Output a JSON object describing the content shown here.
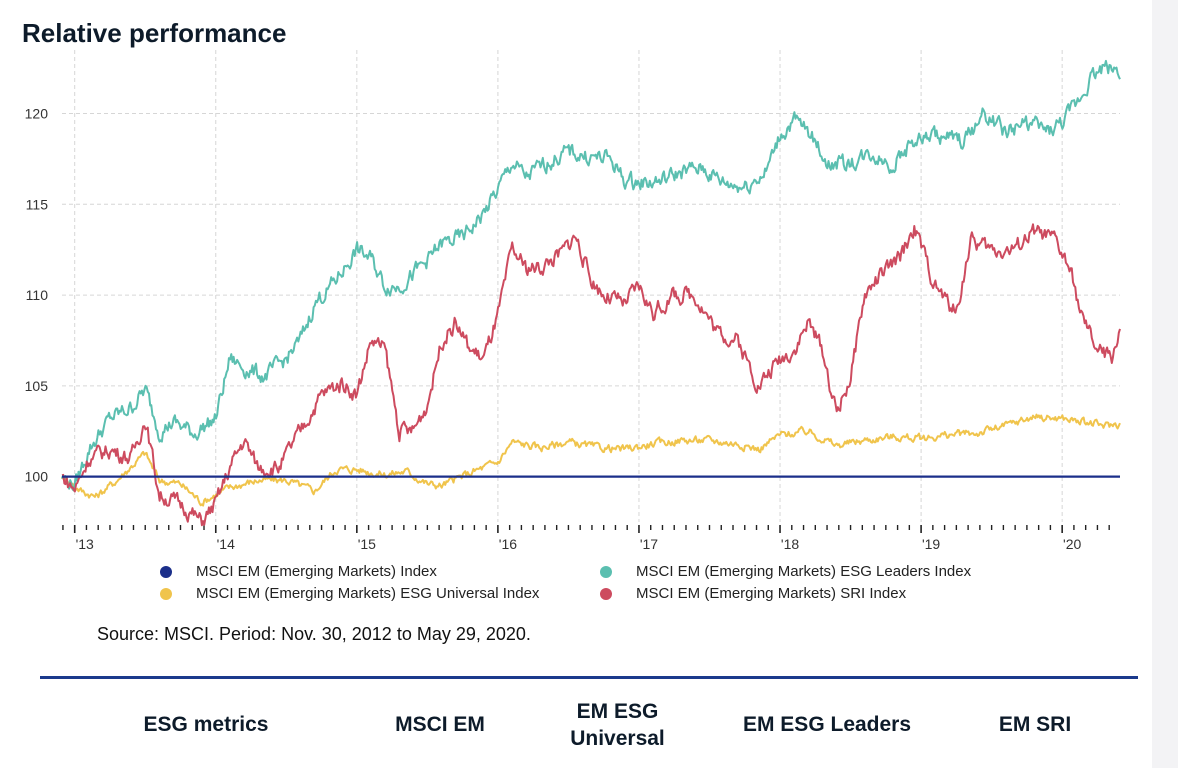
{
  "title": "Relative performance",
  "source": "Source: MSCI. Period: Nov. 30, 2012 to May 29, 2020.",
  "table": {
    "headers": [
      "ESG metrics",
      "MSCI EM",
      "EM ESG Universal",
      "EM ESG Leaders",
      "EM SRI"
    ]
  },
  "colors": {
    "em": "#1b2f8a",
    "universal": "#f0c44c",
    "leaders": "#5bbfb0",
    "sri": "#cd4b5f",
    "grid": "#d6d6d6",
    "divider": "#1b3a8c"
  },
  "chart_data": {
    "type": "line",
    "title": "Relative performance",
    "xlabel": "",
    "ylabel": "",
    "ylim": [
      97.5,
      123.5
    ],
    "xlim": [
      2012.91,
      2020.41
    ],
    "yticks": [
      100,
      105,
      110,
      115,
      120
    ],
    "xticks": [
      2013,
      2014,
      2015,
      2016,
      2017,
      2018,
      2019,
      2020
    ],
    "xtick_labels": [
      "'13",
      "'14",
      "'15",
      "'16",
      "'17",
      "'18",
      "'19",
      "'20"
    ],
    "grid": true,
    "legend_position": "bottom",
    "series": [
      {
        "key": "em",
        "name": "MSCI EM (Emerging Markets) Index",
        "x": [
          2012.91,
          2020.41
        ],
        "values": [
          100,
          100
        ]
      },
      {
        "key": "universal",
        "name": "MSCI EM (Emerging Markets) ESG Universal Index",
        "x": [
          2012.91,
          2013.05,
          2013.15,
          2013.3,
          2013.5,
          2013.6,
          2013.75,
          2013.9,
          2014.1,
          2014.3,
          2014.5,
          2014.7,
          2014.85,
          2015.0,
          2015.2,
          2015.35,
          2015.5,
          2015.6,
          2015.8,
          2016.0,
          2016.1,
          2016.3,
          2016.5,
          2016.7,
          2016.9,
          2017.1,
          2017.3,
          2017.5,
          2017.7,
          2017.85,
          2018.0,
          2018.2,
          2018.4,
          2018.6,
          2018.8,
          2019.0,
          2019.2,
          2019.4,
          2019.6,
          2019.8,
          2020.0,
          2020.15,
          2020.3,
          2020.41
        ],
        "values": [
          100.0,
          99.2,
          98.9,
          99.8,
          101.3,
          99.8,
          99.6,
          98.6,
          99.4,
          99.8,
          99.8,
          99.2,
          100.4,
          100.4,
          100.1,
          100.3,
          99.6,
          99.5,
          100.2,
          100.8,
          101.9,
          101.6,
          101.9,
          101.6,
          101.5,
          101.8,
          102.0,
          102.0,
          101.8,
          101.5,
          102.3,
          102.5,
          101.7,
          102.0,
          102.2,
          102.1,
          102.3,
          102.4,
          102.8,
          103.3,
          103.2,
          103.0,
          102.8,
          102.9
        ]
      },
      {
        "key": "leaders",
        "name": "MSCI EM (Emerging Markets) ESG Leaders Index",
        "x": [
          2012.91,
          2013.0,
          2013.1,
          2013.25,
          2013.4,
          2013.5,
          2013.6,
          2013.7,
          2013.85,
          2014.0,
          2014.1,
          2014.2,
          2014.35,
          2014.5,
          2014.6,
          2014.7,
          2014.85,
          2015.0,
          2015.1,
          2015.2,
          2015.3,
          2015.45,
          2015.6,
          2015.75,
          2015.9,
          2016.0,
          2016.1,
          2016.2,
          2016.35,
          2016.5,
          2016.65,
          2016.8,
          2016.9,
          2017.0,
          2017.15,
          2017.3,
          2017.45,
          2017.6,
          2017.75,
          2017.9,
          2018.0,
          2018.1,
          2018.2,
          2018.35,
          2018.5,
          2018.65,
          2018.8,
          2018.95,
          2019.1,
          2019.3,
          2019.45,
          2019.6,
          2019.75,
          2019.9,
          2020.0,
          2020.1,
          2020.2,
          2020.3,
          2020.41
        ],
        "values": [
          100.0,
          99.5,
          101.5,
          103.2,
          103.8,
          104.8,
          102.5,
          103.0,
          102.4,
          103.2,
          106.5,
          106.0,
          105.5,
          106.5,
          107.5,
          109.5,
          110.8,
          112.5,
          112.0,
          110.5,
          110.5,
          111.5,
          112.8,
          113.2,
          114.5,
          115.8,
          117.3,
          116.5,
          117.3,
          117.9,
          117.6,
          117.5,
          116.3,
          116.2,
          116.3,
          116.8,
          117.0,
          116.2,
          116.0,
          116.8,
          118.8,
          119.6,
          119.0,
          117.2,
          117.3,
          117.8,
          117.2,
          118.5,
          118.8,
          118.5,
          120.0,
          119.0,
          119.5,
          119.0,
          119.5,
          120.5,
          122.0,
          122.6,
          122.4
        ]
      },
      {
        "key": "sri",
        "name": "MSCI EM (Emerging Markets) SRI Index",
        "x": [
          2012.91,
          2013.0,
          2013.1,
          2013.25,
          2013.4,
          2013.5,
          2013.6,
          2013.75,
          2013.9,
          2014.0,
          2014.1,
          2014.2,
          2014.3,
          2014.45,
          2014.6,
          2014.75,
          2014.9,
          2015.0,
          2015.1,
          2015.2,
          2015.3,
          2015.4,
          2015.5,
          2015.6,
          2015.7,
          2015.8,
          2015.9,
          2016.0,
          2016.1,
          2016.2,
          2016.3,
          2016.45,
          2016.55,
          2016.65,
          2016.75,
          2016.9,
          2017.0,
          2017.1,
          2017.25,
          2017.4,
          2017.55,
          2017.7,
          2017.85,
          2018.0,
          2018.1,
          2018.2,
          2018.3,
          2018.4,
          2018.5,
          2018.6,
          2018.7,
          2018.85,
          2018.95,
          2019.1,
          2019.25,
          2019.35,
          2019.5,
          2019.65,
          2019.8,
          2019.95,
          2020.05,
          2020.15,
          2020.25,
          2020.35,
          2020.41
        ],
        "values": [
          100.0,
          99.3,
          101.0,
          101.5,
          101.0,
          103.2,
          99.0,
          98.5,
          97.5,
          98.5,
          100.5,
          102.0,
          100.5,
          100.5,
          102.5,
          104.5,
          105.2,
          104.5,
          107.5,
          107.0,
          102.5,
          102.5,
          104.0,
          107.5,
          108.5,
          107.0,
          106.5,
          108.8,
          112.5,
          111.5,
          111.5,
          112.3,
          113.3,
          111.0,
          110.0,
          109.5,
          110.5,
          109.0,
          110.0,
          110.0,
          108.0,
          107.5,
          105.0,
          106.5,
          107.0,
          108.5,
          107.0,
          103.5,
          105.5,
          110.0,
          111.0,
          112.0,
          113.8,
          110.5,
          109.0,
          113.0,
          112.5,
          112.5,
          113.5,
          113.0,
          111.5,
          108.5,
          107.0,
          106.5,
          108.2
        ]
      }
    ]
  }
}
